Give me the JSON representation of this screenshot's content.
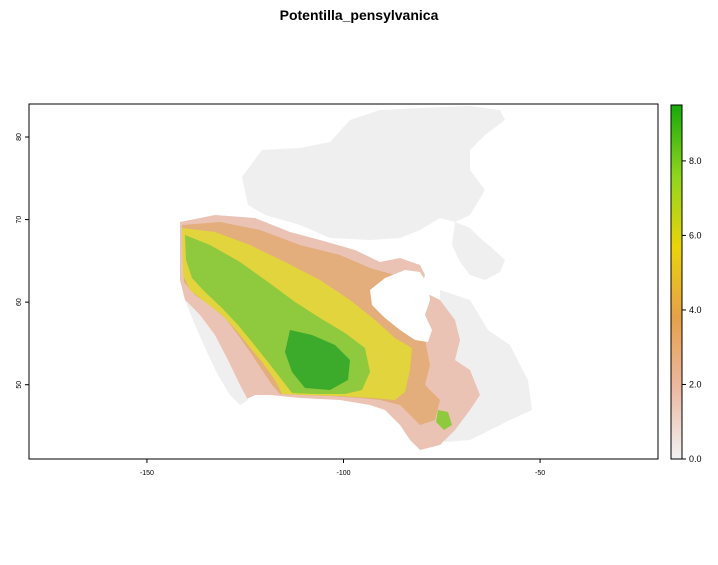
{
  "title": "Potentilla_pensylvanica",
  "x_axis": {
    "ticks": [
      {
        "value": -150,
        "label": "-150"
      },
      {
        "value": -100,
        "label": "-100"
      },
      {
        "value": -50,
        "label": "-50"
      }
    ]
  },
  "y_axis": {
    "ticks": [
      {
        "value": 50,
        "label": "50"
      },
      {
        "value": 60,
        "label": "60"
      },
      {
        "value": 70,
        "label": "70"
      },
      {
        "value": 80,
        "label": "80"
      }
    ]
  },
  "legend": {
    "ticks": [
      {
        "value": 0.0,
        "label": "0.0"
      },
      {
        "value": 2.0,
        "label": "2.0"
      },
      {
        "value": 4.0,
        "label": "4.0"
      },
      {
        "value": 6.0,
        "label": "6.0"
      },
      {
        "value": 8.0,
        "label": "8.0"
      }
    ],
    "range": [
      0,
      9.5
    ],
    "colors": [
      "#f2f2f2",
      "#ecb9a2",
      "#e6a04a",
      "#ead40a",
      "#8fd51e",
      "#17a90a"
    ]
  },
  "map_data": {
    "xlim": [
      -180,
      -20
    ],
    "ylim": [
      41,
      84
    ],
    "colors": {
      "no_data": "#f2f2f2",
      "low": "#ebc2b5",
      "mid": "#e4ad79",
      "high_yellow": "#e3d43a",
      "high_green": "#8cca3e",
      "max_green": "#3aaa2c"
    }
  }
}
